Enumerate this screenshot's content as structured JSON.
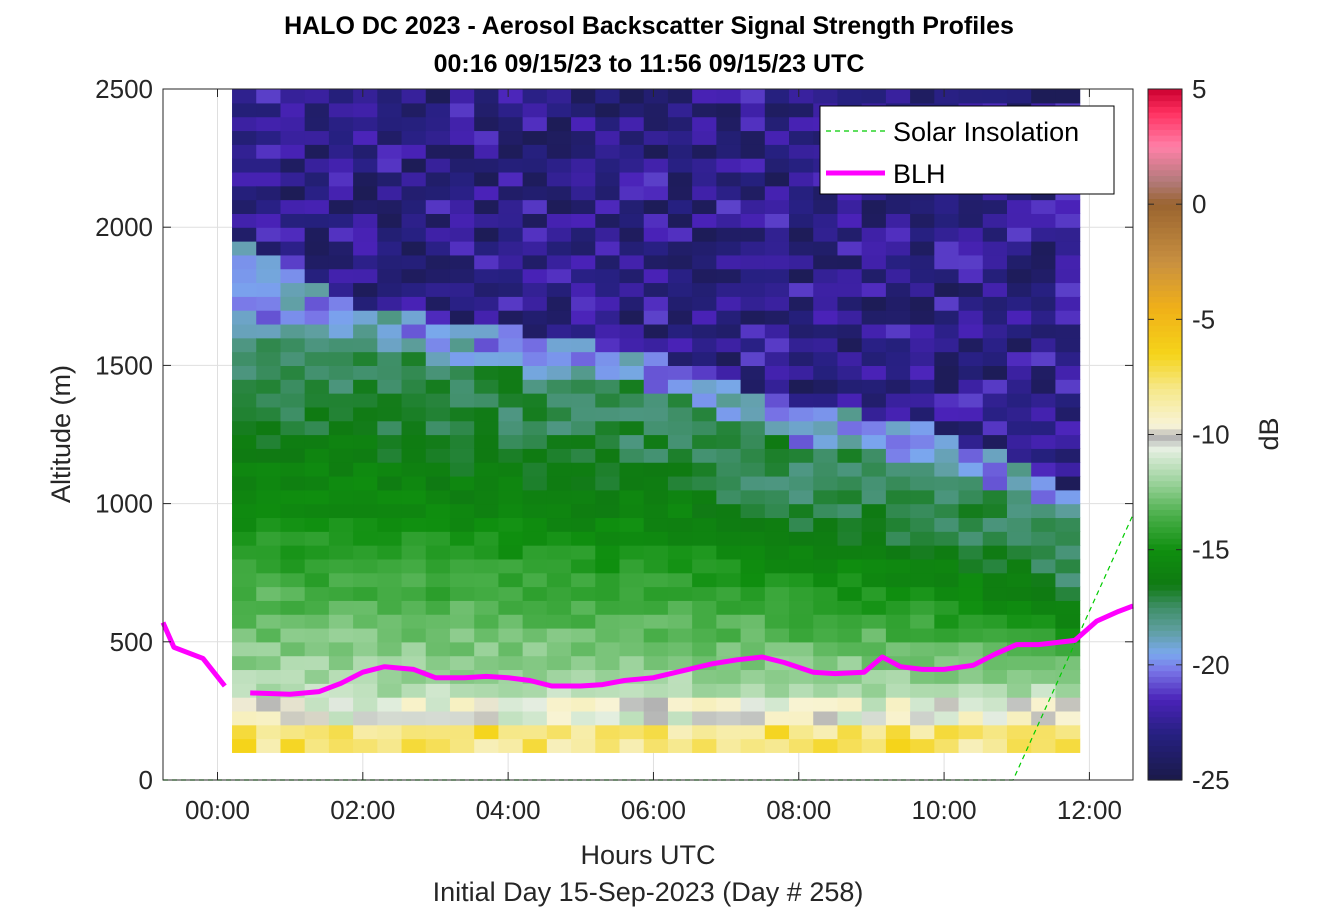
{
  "chart_data": {
    "type": "heatmap",
    "title": "HALO DC 2023 - Aerosol Backscatter Signal Strength Profiles",
    "subtitle": "00:16 09/15/23 to 11:56 09/15/23  UTC",
    "xlabel": "Hours UTC",
    "xlabel2": "Initial Day 15-Sep-2023 (Day # 258)",
    "ylabel": "Altitude (m)",
    "xlim": [
      -0.75,
      12.6
    ],
    "ylim": [
      0,
      2500
    ],
    "grid": true,
    "x_ticks": [
      0,
      2,
      4,
      6,
      8,
      10,
      12
    ],
    "x_tick_labels": [
      "00:00",
      "02:00",
      "04:00",
      "06:00",
      "08:00",
      "10:00",
      "12:00"
    ],
    "y_ticks": [
      0,
      500,
      1000,
      1500,
      2000,
      2500
    ],
    "y_tick_labels": [
      "0",
      "500",
      "1000",
      "1500",
      "2000",
      "2500"
    ],
    "colorbar": {
      "label": "dB",
      "limits": [
        -25,
        5
      ],
      "ticks": [
        5,
        0,
        -5,
        -10,
        -15,
        -20,
        -25
      ],
      "tick_labels": [
        "5",
        "0",
        "-5",
        "-10",
        "-15",
        "-20",
        "-25"
      ]
    },
    "heatmap": {
      "x_start": 0.2,
      "x_step": 0.3333,
      "n_cols": 35,
      "y_start": 100,
      "y_step": 50,
      "n_rows": 48,
      "layers": {
        "surface_top": 200,
        "mixed_green_top": [
          1600,
          1600,
          1600,
          1600,
          1600,
          1600,
          1550,
          1550,
          1500,
          1500,
          1500,
          1500,
          1450,
          1450,
          1450,
          1450,
          1450,
          1400,
          1400,
          1350,
          1300,
          1300,
          1250,
          1200,
          1200,
          1200,
          1200,
          1150,
          1150,
          1100,
          1100,
          1050,
          1050,
          1000,
          950
        ],
        "transition_top": [
          1950,
          1900,
          1850,
          1800,
          1750,
          1700,
          1700,
          1700,
          1650,
          1650,
          1650,
          1650,
          1600,
          1600,
          1600,
          1550,
          1550,
          1550,
          1500,
          1450,
          1450,
          1400,
          1400,
          1350,
          1350,
          1350,
          1300,
          1300,
          1300,
          1250,
          1200,
          1200,
          1150,
          1100,
          1050
        ]
      }
    },
    "series": [
      {
        "name": "Solar Insolation",
        "color": "#00cc00",
        "style": "dashed",
        "x": [
          -0.75,
          10.95,
          12.6
        ],
        "y": [
          0,
          0,
          960
        ]
      },
      {
        "name": "BLH",
        "color": "#ff00ff",
        "style": "solid",
        "segments": [
          {
            "x": [
              -0.75,
              -0.6,
              -0.2,
              0.1
            ],
            "y": [
              570,
              480,
              440,
              340
            ]
          },
          {
            "x": [
              0.45,
              1.0,
              1.4,
              1.7,
              2.0,
              2.3,
              2.7,
              3.0,
              3.4,
              3.7,
              4.0,
              4.3,
              4.6,
              5.0,
              5.3,
              5.6,
              6.0,
              6.4,
              6.8,
              7.15,
              7.5,
              7.8,
              8.2,
              8.5,
              8.9,
              9.15,
              9.4,
              9.7,
              10.0,
              10.4,
              10.7,
              11.0,
              11.3,
              11.8,
              12.1,
              12.4,
              12.6
            ],
            "y": [
              315,
              310,
              320,
              350,
              390,
              410,
              400,
              370,
              370,
              375,
              370,
              360,
              340,
              340,
              345,
              360,
              370,
              395,
              420,
              435,
              445,
              425,
              390,
              385,
              390,
              445,
              410,
              400,
              400,
              415,
              455,
              490,
              490,
              505,
              575,
              610,
              630
            ]
          }
        ]
      }
    ],
    "legend": {
      "placement": "top-right",
      "entries": [
        "Solar Insolation",
        "BLH"
      ]
    }
  }
}
